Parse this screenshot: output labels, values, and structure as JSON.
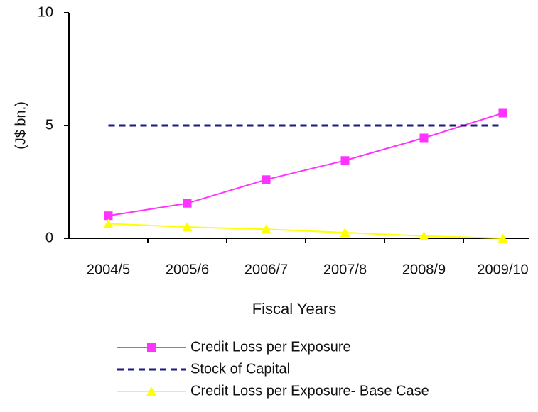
{
  "chart_data": {
    "type": "line",
    "ylabel": "(J$ bn.)",
    "xlabel": "Fiscal Years",
    "categories": [
      "2004/5",
      "2005/6",
      "2006/7",
      "2007/8",
      "2008/9",
      "2009/10"
    ],
    "series": [
      {
        "name": "Credit Loss per Exposure",
        "color": "#ff33ff",
        "marker": "square",
        "dash": "solid",
        "values": [
          1.0,
          1.55,
          2.6,
          3.45,
          4.45,
          5.55
        ]
      },
      {
        "name": "Stock of Capital",
        "color": "#1a1a80",
        "marker": "none",
        "dash": "dashed",
        "values": [
          5,
          5,
          5,
          5,
          5,
          5
        ]
      },
      {
        "name": "Credit Loss per Exposure- Base Case",
        "color": "#ffff00",
        "marker": "triangle",
        "dash": "solid",
        "values": [
          0.65,
          0.5,
          0.4,
          0.25,
          0.1,
          0.0
        ]
      }
    ],
    "ylim": [
      0,
      10
    ],
    "yticks": [
      0,
      5,
      10
    ],
    "grid": false,
    "legend": "bottom"
  }
}
